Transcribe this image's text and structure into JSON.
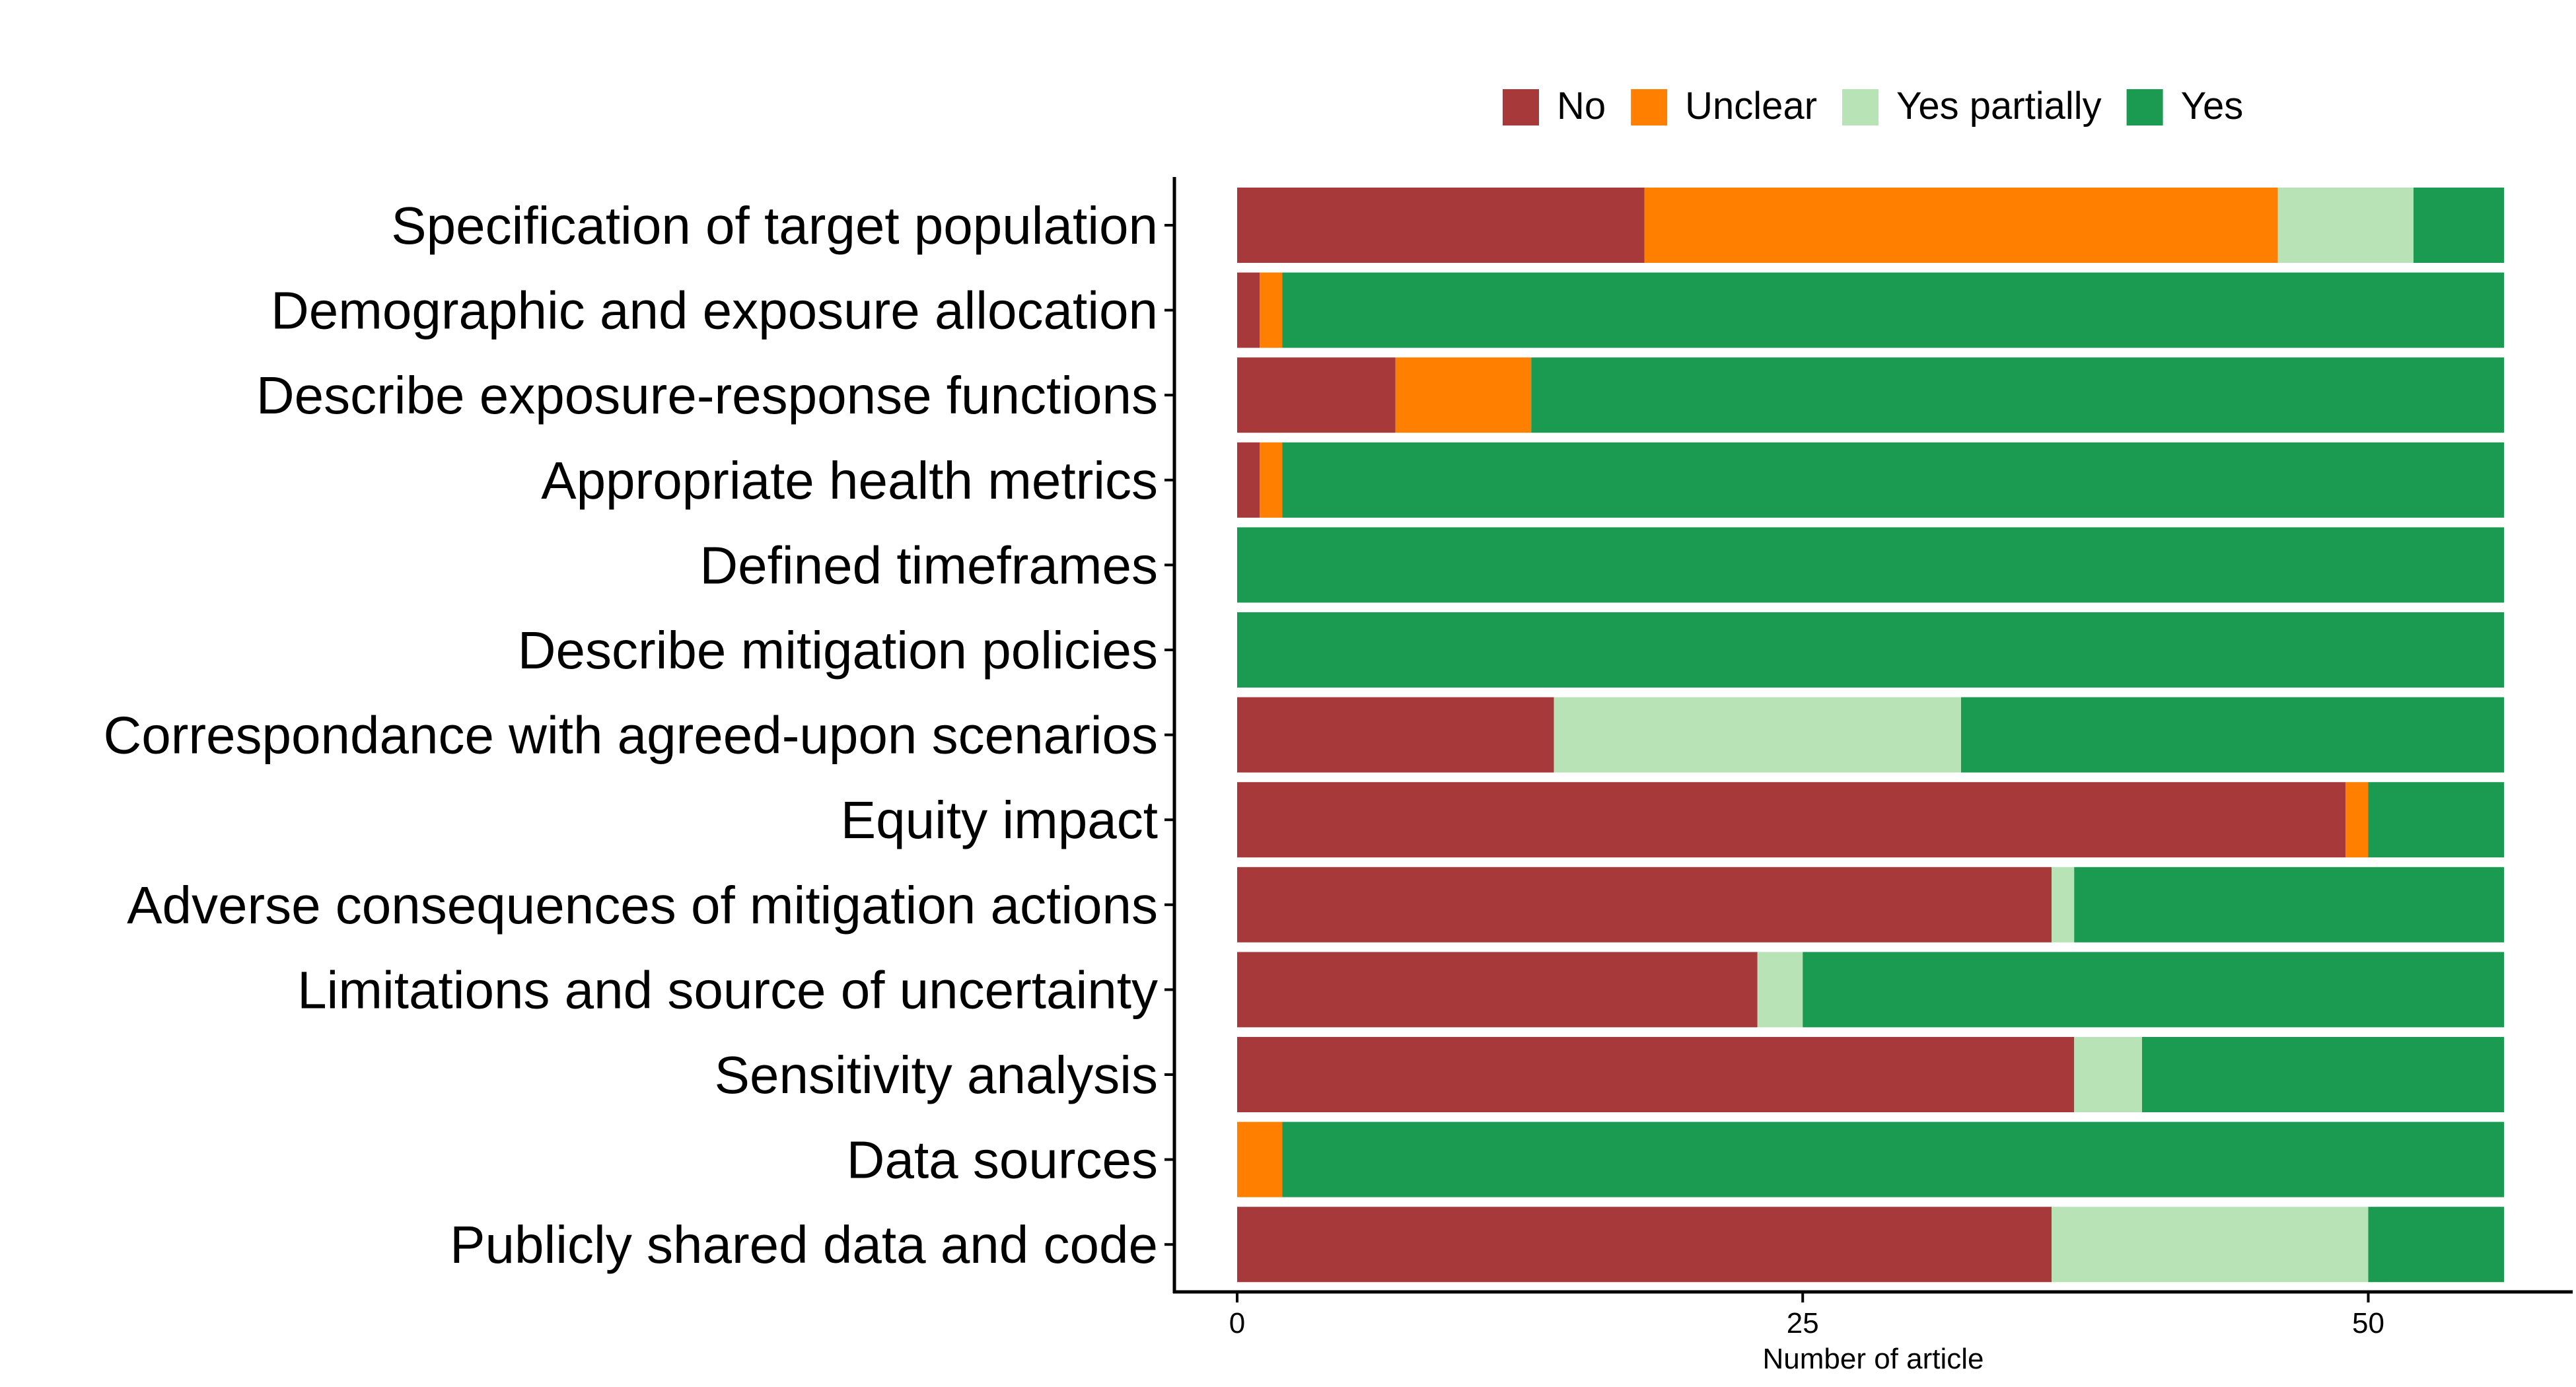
{
  "chart_data": {
    "type": "bar",
    "orientation": "horizontal",
    "stacked": true,
    "xlabel": "Number of article",
    "ylabel": "",
    "xlim": [
      0,
      56
    ],
    "xticks": [
      0,
      25,
      50
    ],
    "grid": false,
    "legend_position": "top",
    "categories": [
      "Specification of target population",
      "Demographic and exposure allocation",
      "Describe exposure-response functions",
      "Appropriate health metrics",
      "Defined timeframes",
      "Describe mitigation policies",
      "Correspondance with agreed-upon scenarios",
      "Equity impact",
      "Adverse consequences of mitigation actions",
      "Limitations and source of uncertainty",
      "Sensitivity analysis",
      "Data sources",
      "Publicly shared data and code"
    ],
    "series": [
      {
        "name": "No",
        "color": "#a8393a",
        "values": [
          18,
          1,
          7,
          1,
          0,
          0,
          14,
          49,
          36,
          23,
          37,
          0,
          36
        ]
      },
      {
        "name": "Unclear",
        "color": "#ff7f00",
        "values": [
          28,
          1,
          6,
          1,
          0,
          0,
          0,
          1,
          0,
          0,
          0,
          2,
          0
        ]
      },
      {
        "name": "Yes partially",
        "color": "#b7e3b6",
        "values": [
          6,
          0,
          0,
          0,
          0,
          0,
          18,
          0,
          1,
          2,
          3,
          0,
          14
        ]
      },
      {
        "name": "Yes",
        "color": "#1b9a51",
        "values": [
          4,
          54,
          43,
          54,
          56,
          56,
          24,
          6,
          19,
          31,
          16,
          54,
          6
        ]
      }
    ]
  }
}
